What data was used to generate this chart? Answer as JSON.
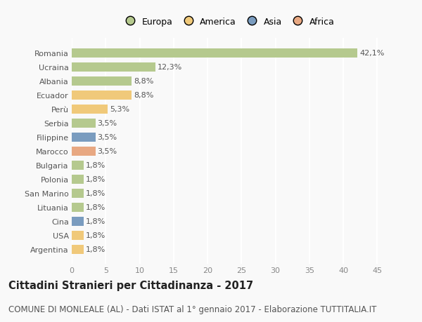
{
  "countries": [
    "Romania",
    "Ucraina",
    "Albania",
    "Ecuador",
    "Perù",
    "Serbia",
    "Filippine",
    "Marocco",
    "Bulgaria",
    "Polonia",
    "San Marino",
    "Lituania",
    "Cina",
    "USA",
    "Argentina"
  ],
  "values": [
    42.1,
    12.3,
    8.8,
    8.8,
    5.3,
    3.5,
    3.5,
    3.5,
    1.8,
    1.8,
    1.8,
    1.8,
    1.8,
    1.8,
    1.8
  ],
  "labels": [
    "42,1%",
    "12,3%",
    "8,8%",
    "8,8%",
    "5,3%",
    "3,5%",
    "3,5%",
    "3,5%",
    "1,8%",
    "1,8%",
    "1,8%",
    "1,8%",
    "1,8%",
    "1,8%",
    "1,8%"
  ],
  "colors": [
    "#b5c98e",
    "#b5c98e",
    "#b5c98e",
    "#f0c97a",
    "#f0c97a",
    "#b5c98e",
    "#7a9cbf",
    "#e8a882",
    "#b5c98e",
    "#b5c98e",
    "#b5c98e",
    "#b5c98e",
    "#7a9cbf",
    "#f0c97a",
    "#f0c97a"
  ],
  "legend_labels": [
    "Europa",
    "America",
    "Asia",
    "Africa"
  ],
  "legend_colors": [
    "#b5c98e",
    "#f0c97a",
    "#7a9cbf",
    "#e8a882"
  ],
  "title": "Cittadini Stranieri per Cittadinanza - 2017",
  "subtitle": "COMUNE DI MONLEALE (AL) - Dati ISTAT al 1° gennaio 2017 - Elaborazione TUTTITALIA.IT",
  "xlim": [
    0,
    46
  ],
  "xticks": [
    0,
    5,
    10,
    15,
    20,
    25,
    30,
    35,
    40,
    45
  ],
  "bg_color": "#f9f9f9",
  "grid_color": "#ffffff",
  "bar_height": 0.65,
  "title_fontsize": 10.5,
  "subtitle_fontsize": 8.5,
  "label_fontsize": 8,
  "tick_fontsize": 8,
  "legend_fontsize": 9
}
